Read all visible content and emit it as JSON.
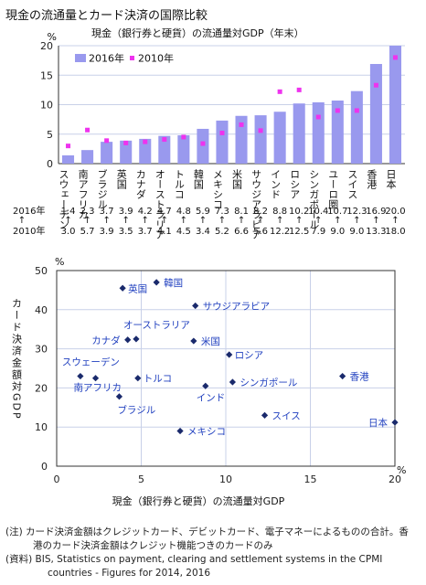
{
  "page_title": "現金の流通量とカード決済の国際比較",
  "colors": {
    "bar": "#9999ee",
    "dot": "#ee33ee",
    "grid": "#c8d0e8",
    "marker": "#1a2a6c",
    "label": "#1f3fbf",
    "axis": "#333333"
  },
  "chart_data": [
    {
      "type": "bar",
      "title": "現金（銀行券と硬貨）の流通量対GDP（年末）",
      "ylabel": "%",
      "ylim": [
        0,
        20
      ],
      "yticks": [
        0,
        5,
        10,
        15,
        20
      ],
      "grid": true,
      "legend_placement": "top-left",
      "categories": [
        "スウェーデン",
        "南アフリカ",
        "ブラジル",
        "英国",
        "カナダ",
        "オーストラリア",
        "トルコ",
        "韓国",
        "メキシコ",
        "米国",
        "サウジアラビア",
        "インド",
        "ロシア",
        "シンガポール",
        "ユーロ圏",
        "スイス",
        "香港",
        "日本"
      ],
      "series": [
        {
          "name": "2016年",
          "kind": "bar",
          "values": [
            1.4,
            2.3,
            3.7,
            3.9,
            4.2,
            4.7,
            4.8,
            5.9,
            7.3,
            8.1,
            8.2,
            8.8,
            10.2,
            10.4,
            10.7,
            12.3,
            16.9,
            20.0
          ]
        },
        {
          "name": "2010年",
          "kind": "marker",
          "values": [
            3.0,
            5.7,
            3.9,
            3.5,
            3.7,
            4.1,
            4.5,
            3.4,
            5.2,
            6.6,
            5.6,
            12.2,
            12.5,
            7.9,
            9.0,
            9.0,
            13.3,
            18.0
          ]
        }
      ],
      "table_row_labels": [
        "2016年",
        "2010年"
      ],
      "table_arrow": "↑"
    },
    {
      "type": "scatter",
      "xlabel": "現金（銀行券と硬貨）の流通量対GDP",
      "ylabel": "カード決済金額対GDP",
      "xunit": "%",
      "yunit": "%",
      "xlim": [
        0,
        20
      ],
      "ylim": [
        0,
        50
      ],
      "xticks": [
        0,
        5,
        10,
        15,
        20
      ],
      "yticks": [
        0,
        10,
        20,
        30,
        40,
        50
      ],
      "grid": true,
      "points": [
        {
          "label": "英国",
          "x": 3.9,
          "y": 45.5
        },
        {
          "label": "韓国",
          "x": 5.9,
          "y": 47.0
        },
        {
          "label": "サウジアラビア",
          "x": 8.2,
          "y": 41.0
        },
        {
          "label": "オーストラリア",
          "x": 4.7,
          "y": 32.5
        },
        {
          "label": "カナダ",
          "x": 4.2,
          "y": 32.3
        },
        {
          "label": "米国",
          "x": 8.1,
          "y": 32.0
        },
        {
          "label": "ロシア",
          "x": 10.2,
          "y": 28.5
        },
        {
          "label": "スウェーデン",
          "x": 1.4,
          "y": 23.0
        },
        {
          "label": "南アフリカ",
          "x": 2.3,
          "y": 22.5
        },
        {
          "label": "トルコ",
          "x": 4.8,
          "y": 22.5
        },
        {
          "label": "シンガポール",
          "x": 10.4,
          "y": 21.5
        },
        {
          "label": "香港",
          "x": 16.9,
          "y": 23.0
        },
        {
          "label": "インド",
          "x": 8.8,
          "y": 20.5
        },
        {
          "label": "ブラジル",
          "x": 3.7,
          "y": 17.8
        },
        {
          "label": "スイス",
          "x": 12.3,
          "y": 13.0
        },
        {
          "label": "日本",
          "x": 20.0,
          "y": 11.2
        },
        {
          "label": "メキシコ",
          "x": 7.3,
          "y": 9.0
        }
      ]
    }
  ],
  "notes": [
    "(注) カード決済金額はクレジットカード、デビットカード、電子マネーによるものの合計。香",
    "港のカード決済金額はクレジット機能つきのカードのみ",
    "(資料) BIS, Statistics on payment, clearing and settlement systems in the CPMI",
    "countries - Figures for 2014, 2016"
  ]
}
